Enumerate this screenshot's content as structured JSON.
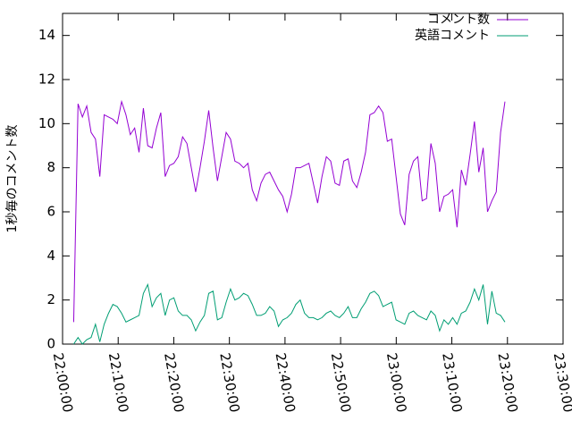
{
  "chart_data": {
    "type": "line",
    "ylabel": "1秒毎のコメント数",
    "legend": "top right",
    "grid": false,
    "xlim": [
      "22:00:00",
      "23:30:00"
    ],
    "xticks": [
      "22:00:00",
      "22:10:00",
      "22:20:00",
      "22:30:00",
      "22:40:00",
      "22:50:00",
      "23:00:00",
      "23:10:00",
      "23:20:00",
      "23:30:00"
    ],
    "ylim": [
      0,
      15
    ],
    "yticks": [
      0,
      2,
      4,
      6,
      8,
      10,
      12,
      14
    ],
    "x": [
      "22:02:00",
      "22:02:47",
      "22:03:34",
      "22:04:21",
      "22:05:08",
      "22:05:55",
      "22:06:42",
      "22:07:29",
      "22:08:16",
      "22:09:03",
      "22:09:50",
      "22:10:37",
      "22:11:24",
      "22:12:11",
      "22:12:58",
      "22:13:45",
      "22:14:32",
      "22:15:19",
      "22:16:06",
      "22:16:53",
      "22:17:40",
      "22:18:27",
      "22:19:14",
      "22:20:01",
      "22:20:48",
      "22:21:35",
      "22:22:22",
      "22:23:09",
      "22:23:56",
      "22:24:43",
      "22:25:30",
      "22:26:17",
      "22:27:04",
      "22:27:51",
      "22:28:38",
      "22:29:25",
      "22:30:12",
      "22:30:59",
      "22:31:46",
      "22:32:33",
      "22:33:20",
      "22:34:07",
      "22:34:54",
      "22:35:41",
      "22:36:28",
      "22:37:15",
      "22:38:02",
      "22:38:49",
      "22:39:36",
      "22:40:23",
      "22:41:10",
      "22:41:57",
      "22:42:44",
      "22:43:31",
      "22:44:18",
      "22:45:05",
      "22:45:52",
      "22:46:39",
      "22:47:26",
      "22:48:13",
      "22:49:00",
      "22:49:47",
      "22:50:34",
      "22:51:21",
      "22:52:08",
      "22:52:55",
      "22:53:42",
      "22:54:29",
      "22:55:16",
      "22:56:03",
      "22:56:50",
      "22:57:37",
      "22:58:24",
      "22:59:11",
      "22:59:58",
      "23:00:45",
      "23:01:32",
      "23:02:19",
      "23:03:06",
      "23:03:53",
      "23:04:40",
      "23:05:27",
      "23:06:14",
      "23:07:01",
      "23:07:48",
      "23:08:35",
      "23:09:22",
      "23:10:09",
      "23:10:56",
      "23:11:43",
      "23:12:30",
      "23:13:17",
      "23:14:04",
      "23:14:51",
      "23:15:38",
      "23:16:25",
      "23:17:12",
      "23:17:59",
      "23:18:46",
      "23:19:33"
    ],
    "series": [
      {
        "name": "コメント数",
        "color": "#9400d3",
        "values": [
          1.0,
          10.9,
          10.3,
          10.8,
          9.6,
          9.3,
          7.6,
          10.4,
          10.3,
          10.2,
          10.0,
          11.0,
          10.4,
          9.5,
          9.8,
          8.7,
          10.7,
          9.0,
          8.9,
          9.8,
          10.5,
          7.6,
          8.1,
          8.2,
          8.5,
          9.4,
          9.1,
          8.0,
          6.9,
          8.0,
          9.2,
          10.6,
          8.9,
          7.4,
          8.5,
          9.6,
          9.3,
          8.3,
          8.2,
          8.0,
          8.2,
          7.0,
          6.5,
          7.3,
          7.7,
          7.8,
          7.4,
          7.0,
          6.7,
          6.0,
          6.8,
          8.0,
          8.0,
          8.1,
          8.2,
          7.3,
          6.4,
          7.6,
          8.5,
          8.3,
          7.3,
          7.2,
          8.3,
          8.4,
          7.4,
          7.1,
          7.8,
          8.7,
          10.4,
          10.5,
          10.8,
          10.5,
          9.2,
          9.3,
          7.6,
          5.9,
          5.4,
          7.7,
          8.3,
          8.5,
          6.5,
          6.6,
          9.1,
          8.2,
          6.0,
          6.7,
          6.8,
          7.0,
          5.3,
          7.9,
          7.2,
          8.6,
          10.1,
          7.8,
          8.9,
          6.0,
          6.5,
          6.9,
          9.6,
          11.0
        ]
      },
      {
        "name": "英語コメント",
        "color": "#009e73",
        "values": [
          0,
          0.3,
          0,
          0.2,
          0.3,
          0.9,
          0.1,
          0.9,
          1.4,
          1.8,
          1.7,
          1.4,
          1.0,
          1.1,
          1.2,
          1.3,
          2.3,
          2.7,
          1.7,
          2.1,
          2.3,
          1.3,
          2.0,
          2.1,
          1.5,
          1.3,
          1.3,
          1.1,
          0.6,
          1.0,
          1.3,
          2.3,
          2.4,
          1.1,
          1.2,
          1.9,
          2.5,
          2.0,
          2.1,
          2.3,
          2.2,
          1.8,
          1.3,
          1.3,
          1.4,
          1.7,
          1.5,
          0.8,
          1.1,
          1.2,
          1.4,
          1.8,
          2.0,
          1.4,
          1.2,
          1.2,
          1.1,
          1.2,
          1.4,
          1.5,
          1.3,
          1.2,
          1.4,
          1.7,
          1.2,
          1.2,
          1.6,
          1.9,
          2.3,
          2.4,
          2.2,
          1.7,
          1.8,
          1.9,
          1.1,
          1.0,
          0.9,
          1.4,
          1.5,
          1.3,
          1.2,
          1.1,
          1.5,
          1.3,
          0.6,
          1.1,
          0.9,
          1.2,
          0.9,
          1.4,
          1.5,
          1.9,
          2.5,
          2.0,
          2.7,
          0.9,
          2.4,
          1.4,
          1.3,
          1.0
        ]
      }
    ]
  }
}
